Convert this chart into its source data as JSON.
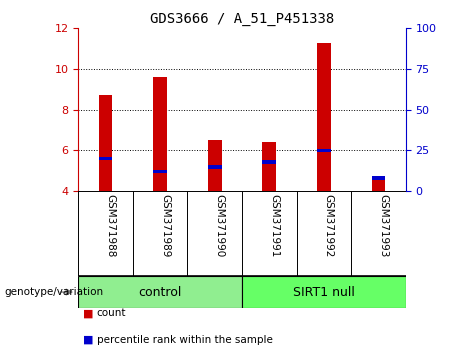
{
  "title": "GDS3666 / A_51_P451338",
  "samples": [
    "GSM371988",
    "GSM371989",
    "GSM371990",
    "GSM371991",
    "GSM371992",
    "GSM371993"
  ],
  "count_values": [
    8.7,
    9.6,
    6.5,
    6.4,
    11.3,
    4.6
  ],
  "percentile_values": [
    20,
    12,
    15,
    18,
    25,
    8
  ],
  "ylim_left": [
    4,
    12
  ],
  "ylim_right": [
    0,
    100
  ],
  "yticks_left": [
    4,
    6,
    8,
    10,
    12
  ],
  "yticks_right": [
    0,
    25,
    50,
    75,
    100
  ],
  "groups": [
    {
      "label": "control",
      "color": "#90EE90",
      "start": 0,
      "end": 2
    },
    {
      "label": "SIRT1 null",
      "color": "#66FF66",
      "start": 3,
      "end": 5
    }
  ],
  "bar_width": 0.25,
  "count_color": "#CC0000",
  "percentile_color": "#0000CC",
  "sample_bg_color": "#C8C8C8",
  "plot_bg_color": "#FFFFFF",
  "left_axis_color": "#CC0000",
  "right_axis_color": "#0000CC",
  "genotype_label": "genotype/variation",
  "legend_count": "count",
  "legend_percentile": "percentile rank within the sample",
  "gridlines_at": [
    6,
    8,
    10
  ]
}
